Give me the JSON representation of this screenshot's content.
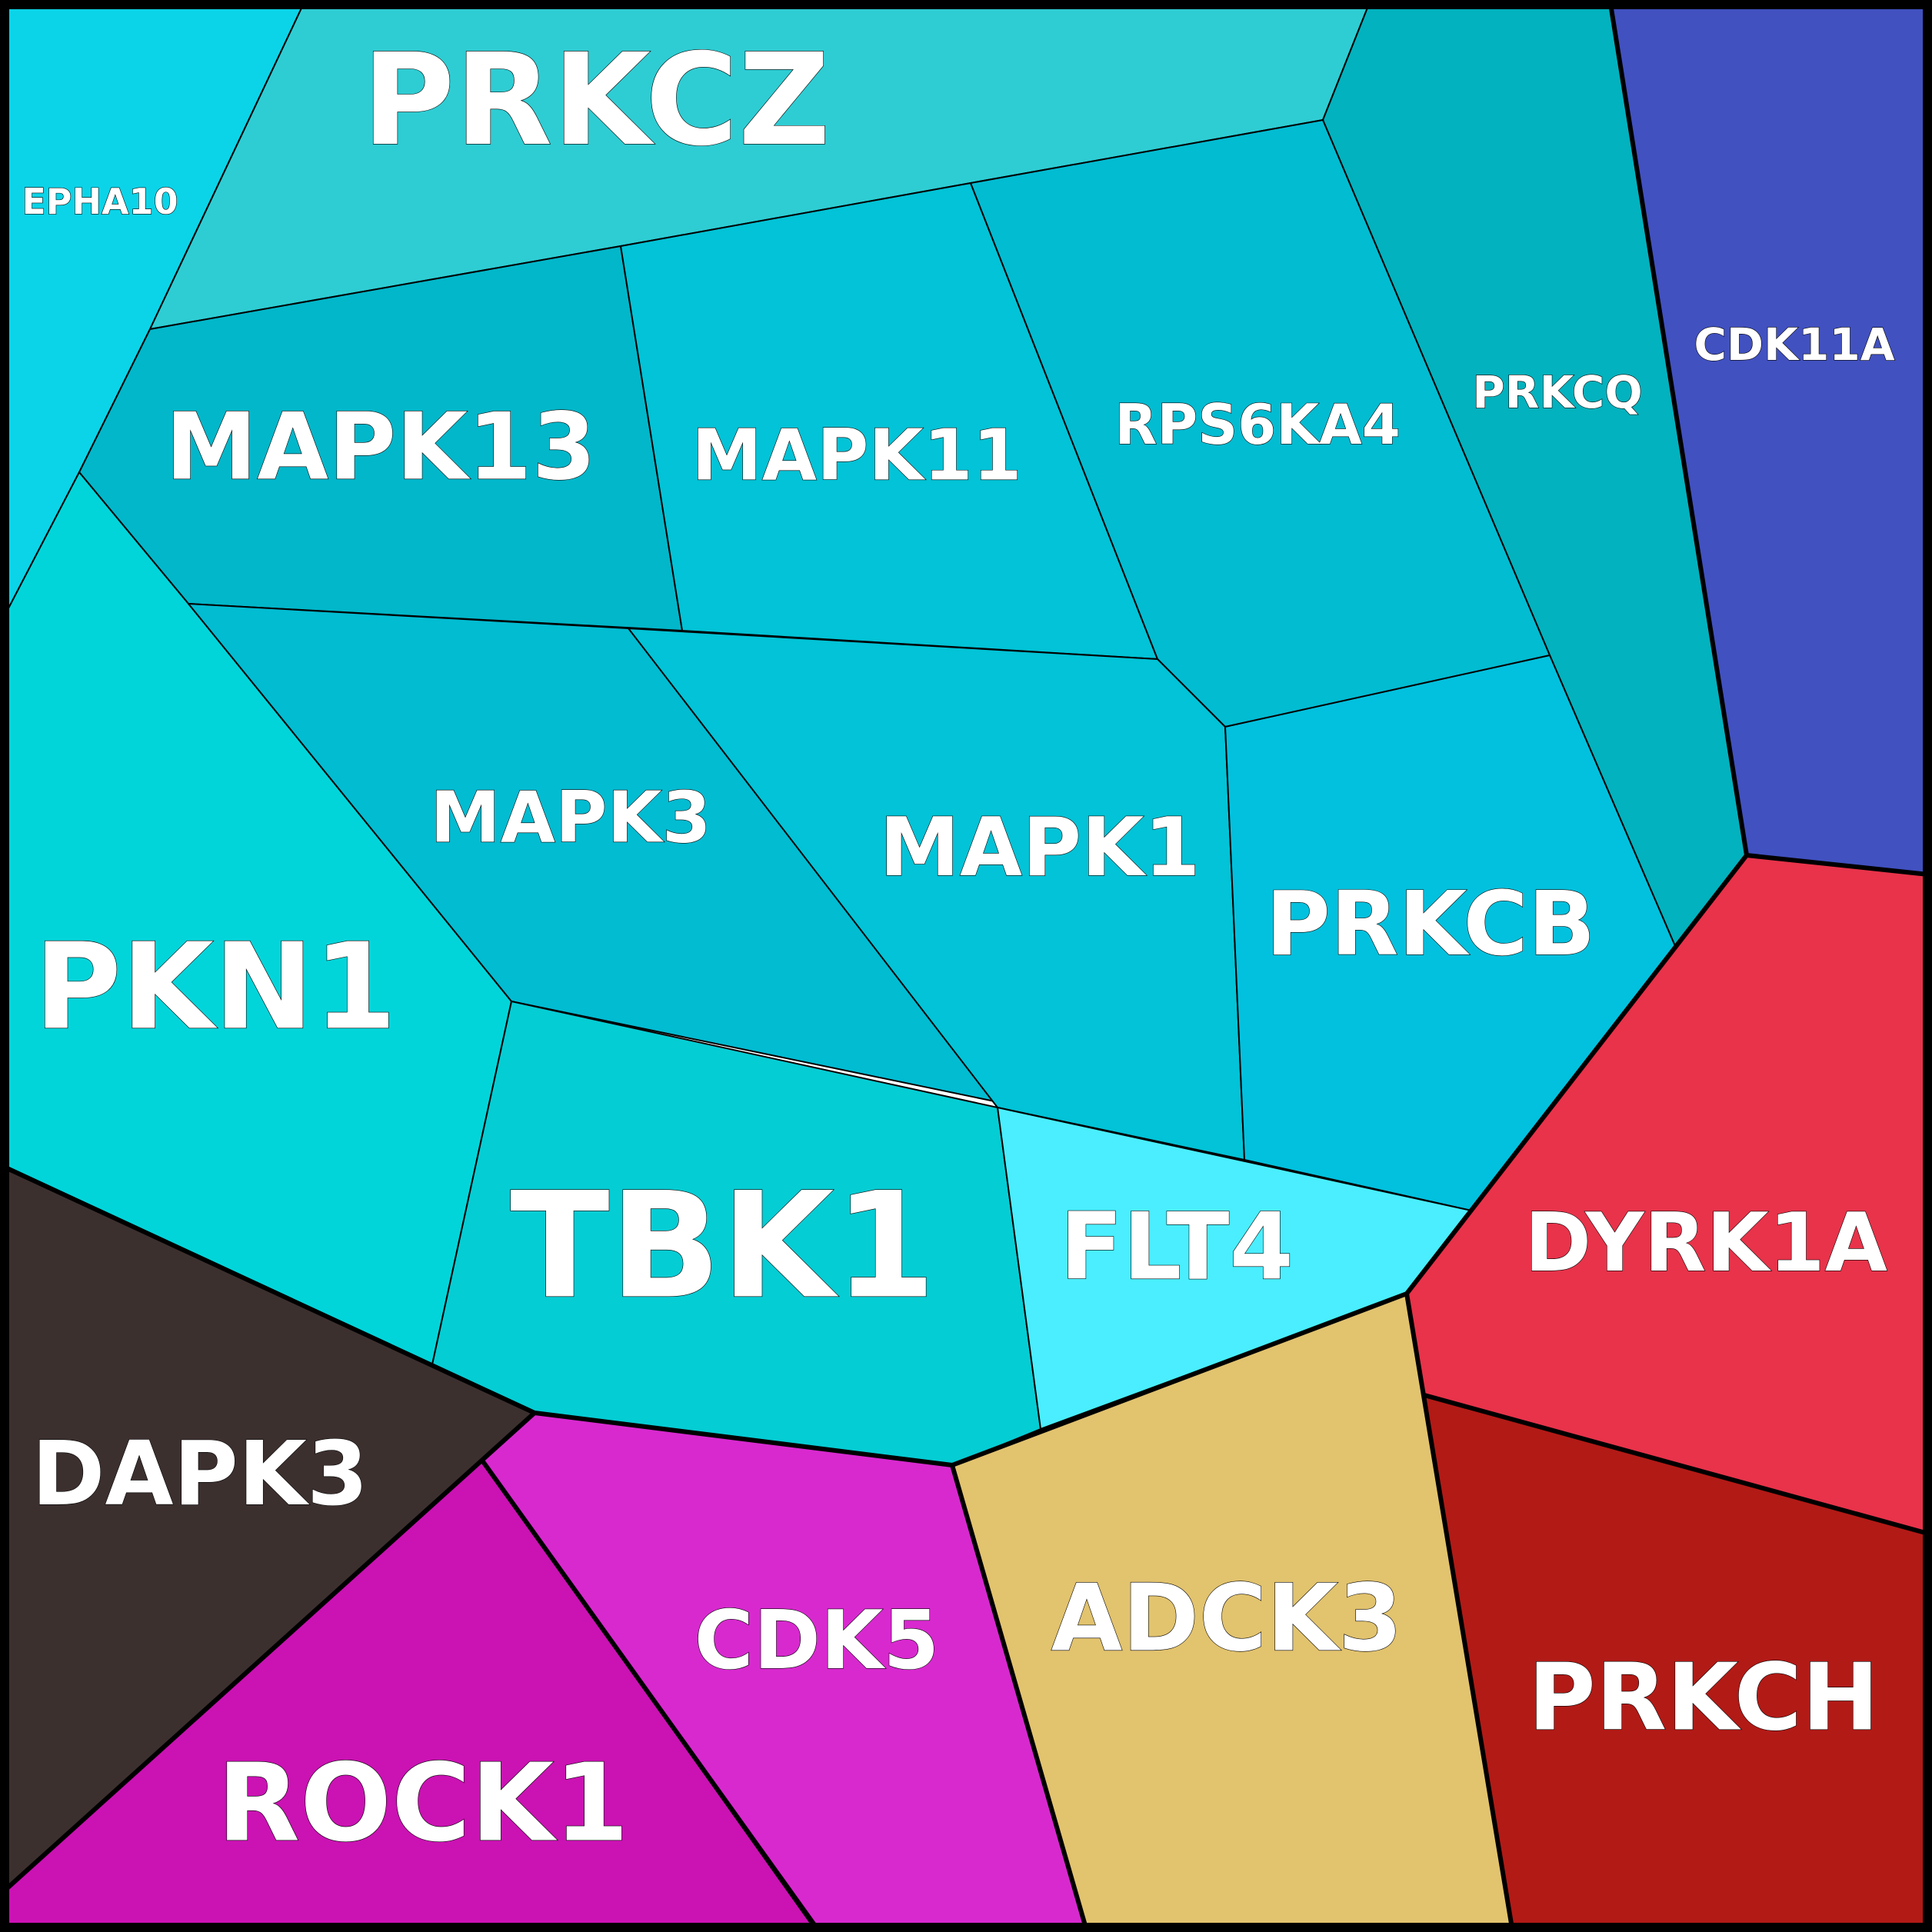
{
  "diagram": {
    "type": "voronoi-treemap",
    "cells": [
      {
        "id": "epha10",
        "label": "EPHA10",
        "color": "#0bd4e8"
      },
      {
        "id": "prkcz",
        "label": "PRKCZ",
        "color": "#2ecdd3"
      },
      {
        "id": "prkcq",
        "label": "PRKCQ",
        "color": "#02b2be"
      },
      {
        "id": "cdk11a",
        "label": "CDK11A",
        "color": "#4151c0"
      },
      {
        "id": "mapk13",
        "label": "MAPK13",
        "color": "#02b7ca"
      },
      {
        "id": "mapk11",
        "label": "MAPK11",
        "color": "#02c3d7"
      },
      {
        "id": "rps6ka4",
        "label": "RPS6KA4",
        "color": "#02bcd2"
      },
      {
        "id": "pkn1",
        "label": "PKN1",
        "color": "#02d5da"
      },
      {
        "id": "mapk3",
        "label": "MAPK3",
        "color": "#02bcd2"
      },
      {
        "id": "mapk1",
        "label": "MAPK1",
        "color": "#02c3d7"
      },
      {
        "id": "prkcb",
        "label": "PRKCB",
        "color": "#02c1de"
      },
      {
        "id": "tbk1",
        "label": "TBK1",
        "color": "#05cdd4"
      },
      {
        "id": "flt4",
        "label": "FLT4",
        "color": "#4aeefe"
      },
      {
        "id": "dyrk1a",
        "label": "DYRK1A",
        "color": "#e8334a"
      },
      {
        "id": "dapk3",
        "label": "DAPK3",
        "color": "#3c302f"
      },
      {
        "id": "rock1",
        "label": "ROCK1",
        "color": "#cb12b3"
      },
      {
        "id": "cdk5",
        "label": "CDK5",
        "color": "#d829cf"
      },
      {
        "id": "adck3",
        "label": "ADCK3",
        "color": "#e2c36e"
      },
      {
        "id": "prkch",
        "label": "PRKCH",
        "color": "#b21a16"
      }
    ]
  }
}
